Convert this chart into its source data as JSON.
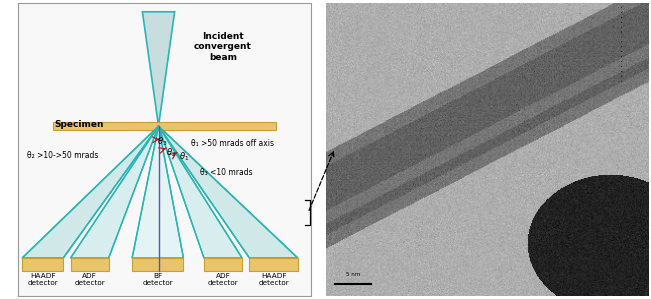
{
  "fig_width": 6.51,
  "fig_height": 2.99,
  "dpi": 100,
  "left_bg": "#f8f8f8",
  "beam_color": "#2ab5b5",
  "specimen_color": "#e8c46a",
  "detector_color": "#e8c46a",
  "cone_fill_outer": "#d0e8e8",
  "cone_fill_mid": "#d8eeee",
  "cone_fill_inner": "#e4f4f4",
  "cone_edge": "#2ab5b5",
  "title_text": "Incident\nconvergent\nbeam",
  "specimen_text": "Specimen",
  "theta1_label": "θ₁ >50 mrads off axis",
  "theta2_label": "θ₂ >10->50 mrads",
  "theta3_label": "θ₃ <10 mrads",
  "haadf_left": "HAADF\ndetector",
  "adf_left": "ADF\ndetector",
  "bf": "BF\ndetector",
  "adf_right": "ADF\ndetector",
  "haadf_right": "HAADF\ndetector",
  "arrow_color": "#aa2222",
  "vertical_line_color": "#5555bb",
  "bracket_color": "#333333",
  "scalebar_color": "#000000"
}
